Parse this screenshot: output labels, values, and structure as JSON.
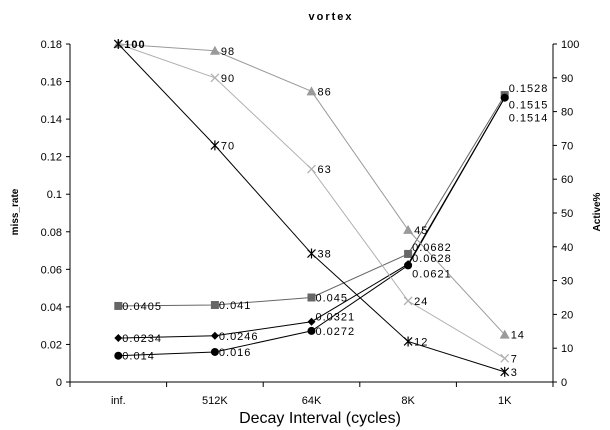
{
  "chart_data": {
    "type": "line",
    "title": "vortex",
    "xlabel": "Decay Interval (cycles)",
    "ylabel": "miss_rate",
    "y2label": "Active%",
    "categories": [
      "inf.",
      "512K",
      "64K",
      "8K",
      "1K"
    ],
    "ylim": [
      0,
      0.18
    ],
    "y2lim": [
      0,
      100
    ],
    "yticks": [
      "0",
      "0.02",
      "0.04",
      "0.06",
      "0.08",
      "0.1",
      "0.12",
      "0.14",
      "0.16",
      "0.18"
    ],
    "y2ticks": [
      "0",
      "10",
      "20",
      "30",
      "40",
      "50",
      "60",
      "70",
      "80",
      "90",
      "100"
    ],
    "legend": "none",
    "grid": false,
    "series": [
      {
        "axis": "left",
        "marker": "square",
        "color": "#666666",
        "values": [
          0.0405,
          0.041,
          0.045,
          0.0682,
          0.1528
        ],
        "labels": [
          "0.0405",
          "0.041",
          "0.045",
          "0.0682",
          "0.1528"
        ]
      },
      {
        "axis": "left",
        "marker": "diamond",
        "color": "#000000",
        "values": [
          0.0234,
          0.0246,
          0.0321,
          0.0628,
          0.1515
        ],
        "labels": [
          "0.0234",
          "0.0246",
          "0.0321",
          "0.0628",
          "0.1515"
        ]
      },
      {
        "axis": "left",
        "marker": "circle",
        "color": "#000000",
        "values": [
          0.014,
          0.016,
          0.0272,
          0.0621,
          0.1514
        ],
        "labels": [
          "0.014",
          "0.016",
          "0.0272",
          "0.0621",
          "0.1514"
        ]
      },
      {
        "axis": "right",
        "marker": "triangle",
        "color": "#9a9a9a",
        "values": [
          100,
          98,
          86,
          45,
          14
        ],
        "labels": [
          "",
          "98",
          "86",
          "45",
          "14"
        ]
      },
      {
        "axis": "right",
        "marker": "x",
        "color": "#b0b0b0",
        "values": [
          100,
          90,
          63,
          24,
          7
        ],
        "labels": [
          "",
          "90",
          "63",
          "24",
          "7"
        ]
      },
      {
        "axis": "right",
        "marker": "star",
        "color": "#000000",
        "values": [
          100,
          70,
          38,
          12,
          3
        ],
        "labels": [
          "100",
          "70",
          "38",
          "12",
          "3"
        ]
      }
    ]
  }
}
